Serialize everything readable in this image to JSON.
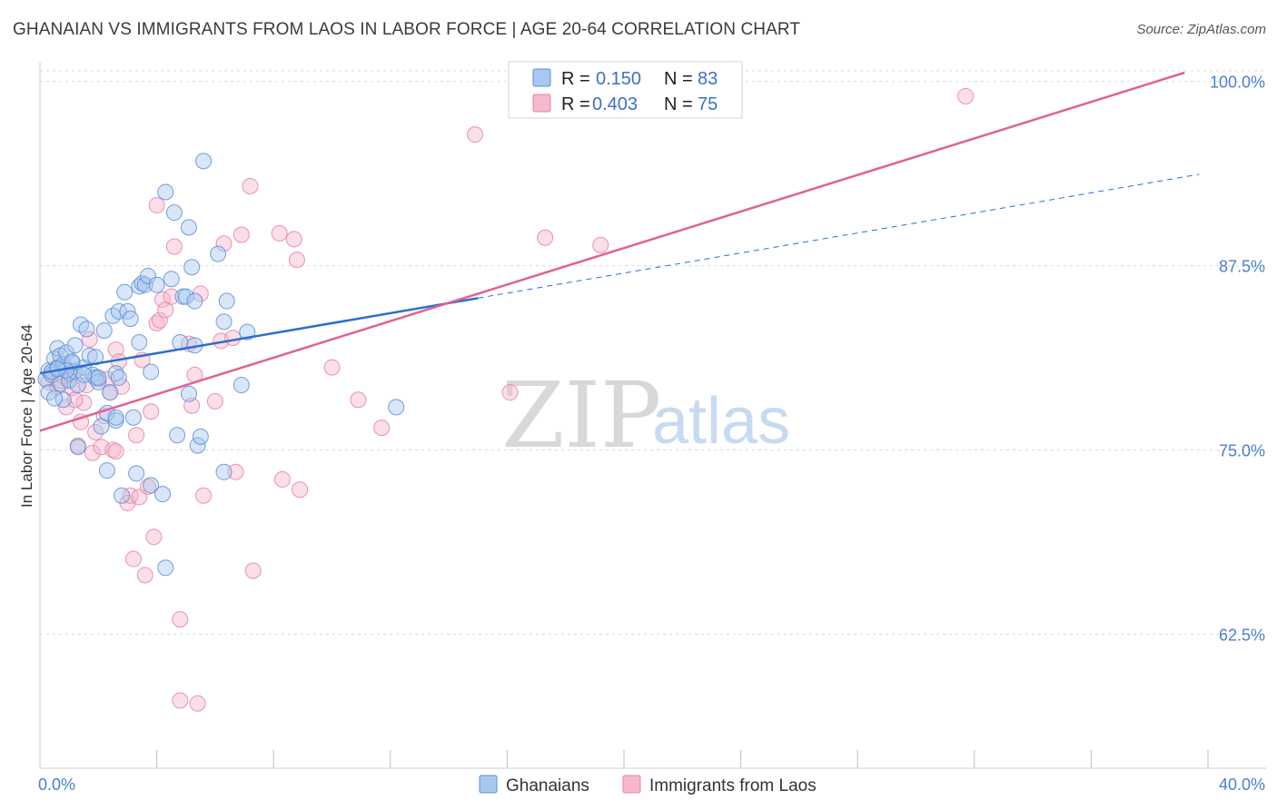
{
  "title": "GHANAIAN VS IMMIGRANTS FROM LAOS IN LABOR FORCE | AGE 20-64 CORRELATION CHART",
  "source": "Source: ZipAtlas.com",
  "watermark": {
    "zip": "ZIP",
    "atlas": "atlas"
  },
  "colors": {
    "blue_fill": "#a9c8f0",
    "blue_stroke": "#5b8fd6",
    "blue_line": "#2a6fd0",
    "pink_fill": "#f5b8cc",
    "pink_stroke": "#e880a6",
    "pink_line": "#e2628f",
    "grid": "#d9d9d9",
    "axis_text": "#4a7fd0"
  },
  "legend": {
    "rows": [
      {
        "r_label": "R =",
        "r_value": "0.150",
        "n_label": "N =",
        "n_value": "83"
      },
      {
        "r_label": "R =",
        "r_value": "0.403",
        "n_label": "N =",
        "n_value": "75"
      }
    ]
  },
  "chart_data": {
    "type": "scatter",
    "title": "GHANAIAN VS IMMIGRANTS FROM LAOS IN LABOR FORCE | AGE 20-64 CORRELATION CHART",
    "xlabel": "",
    "ylabel": "In Labor Force | Age 20-64",
    "xlim": [
      0,
      40
    ],
    "ylim": [
      53.4,
      100.6
    ],
    "y_ticks": [
      62.5,
      75.0,
      87.5,
      100.0
    ],
    "y_tick_labels": [
      "62.5%",
      "75.0%",
      "87.5%",
      "100.0%"
    ],
    "x_tick_labels": [
      "0.0%",
      "40.0%"
    ],
    "x_minor_ticks": [
      0,
      4,
      8,
      12,
      16,
      20,
      24,
      28,
      32,
      36,
      40
    ],
    "series": [
      {
        "name": "Ghanaians",
        "r": 0.15,
        "n": 83,
        "trend": {
          "x0": 0,
          "y0": 80.2,
          "x1": 15,
          "y1": 85.3,
          "dash_x1": 39.7,
          "dash_y1": 93.7
        },
        "points": [
          [
            0.2,
            79.8
          ],
          [
            0.3,
            80.4
          ],
          [
            0.3,
            78.9
          ],
          [
            0.4,
            80.1
          ],
          [
            0.5,
            81.2
          ],
          [
            0.6,
            80.6
          ],
          [
            0.6,
            81.9
          ],
          [
            0.7,
            81.4
          ],
          [
            0.7,
            79.5
          ],
          [
            0.8,
            80.8
          ],
          [
            0.8,
            78.4
          ],
          [
            0.9,
            81.6
          ],
          [
            1.0,
            80.2
          ],
          [
            1.0,
            79.7
          ],
          [
            1.1,
            80.9
          ],
          [
            1.2,
            82.1
          ],
          [
            1.2,
            80.3
          ],
          [
            1.3,
            79.4
          ],
          [
            1.4,
            83.5
          ],
          [
            1.5,
            80.6
          ],
          [
            1.6,
            83.2
          ],
          [
            1.7,
            81.4
          ],
          [
            1.8,
            80.1
          ],
          [
            1.9,
            81.3
          ],
          [
            1.9,
            79.9
          ],
          [
            2.0,
            79.6
          ],
          [
            2.1,
            76.6
          ],
          [
            2.2,
            83.1
          ],
          [
            2.3,
            77.5
          ],
          [
            2.3,
            73.6
          ],
          [
            2.4,
            78.9
          ],
          [
            2.5,
            84.1
          ],
          [
            2.6,
            80.2
          ],
          [
            2.6,
            77.0
          ],
          [
            2.7,
            84.4
          ],
          [
            2.7,
            79.9
          ],
          [
            2.8,
            71.9
          ],
          [
            2.9,
            85.7
          ],
          [
            3.0,
            84.4
          ],
          [
            3.1,
            83.9
          ],
          [
            3.2,
            77.2
          ],
          [
            3.3,
            73.4
          ],
          [
            3.4,
            82.3
          ],
          [
            3.4,
            86.1
          ],
          [
            3.5,
            86.3
          ],
          [
            3.6,
            86.2
          ],
          [
            3.7,
            86.8
          ],
          [
            3.8,
            72.6
          ],
          [
            3.8,
            80.3
          ],
          [
            4.0,
            86.2
          ],
          [
            4.2,
            72.0
          ],
          [
            4.3,
            92.5
          ],
          [
            4.3,
            67.0
          ],
          [
            4.5,
            86.6
          ],
          [
            4.6,
            91.1
          ],
          [
            4.7,
            76.0
          ],
          [
            4.8,
            82.3
          ],
          [
            4.9,
            85.4
          ],
          [
            5.0,
            85.4
          ],
          [
            5.1,
            78.8
          ],
          [
            5.1,
            90.1
          ],
          [
            5.2,
            87.4
          ],
          [
            5.3,
            82.1
          ],
          [
            5.3,
            85.1
          ],
          [
            5.4,
            75.3
          ],
          [
            5.5,
            75.9
          ],
          [
            5.6,
            94.6
          ],
          [
            6.1,
            88.3
          ],
          [
            6.3,
            83.7
          ],
          [
            6.3,
            73.5
          ],
          [
            6.4,
            85.1
          ],
          [
            6.9,
            79.4
          ],
          [
            7.1,
            83.0
          ],
          [
            12.2,
            77.9
          ],
          [
            0.4,
            80.3
          ],
          [
            1.1,
            81.0
          ],
          [
            0.5,
            78.5
          ],
          [
            1.3,
            75.2
          ],
          [
            2.0,
            79.9
          ],
          [
            0.9,
            80.4
          ],
          [
            1.5,
            80.1
          ],
          [
            2.6,
            77.2
          ],
          [
            0.6,
            80.5
          ]
        ]
      },
      {
        "name": "Immigrants from Laos",
        "r": 0.403,
        "n": 75,
        "trend": {
          "x0": 0,
          "y0": 76.3,
          "x1": 39.2,
          "y1": 100.6
        },
        "points": [
          [
            0.3,
            79.6
          ],
          [
            0.4,
            80.3
          ],
          [
            0.5,
            80.1
          ],
          [
            0.6,
            79.3
          ],
          [
            0.7,
            79.7
          ],
          [
            0.8,
            80.6
          ],
          [
            0.9,
            77.9
          ],
          [
            1.0,
            79.8
          ],
          [
            1.1,
            79.2
          ],
          [
            1.2,
            80.4
          ],
          [
            1.3,
            75.3
          ],
          [
            1.4,
            76.9
          ],
          [
            1.5,
            78.2
          ],
          [
            1.6,
            79.4
          ],
          [
            1.7,
            82.5
          ],
          [
            1.8,
            74.8
          ],
          [
            1.9,
            76.2
          ],
          [
            2.0,
            79.8
          ],
          [
            2.1,
            75.2
          ],
          [
            2.2,
            77.3
          ],
          [
            2.3,
            79.8
          ],
          [
            2.4,
            78.9
          ],
          [
            2.5,
            75.0
          ],
          [
            2.6,
            74.9
          ],
          [
            2.6,
            81.8
          ],
          [
            2.7,
            81.0
          ],
          [
            2.8,
            79.3
          ],
          [
            3.0,
            71.4
          ],
          [
            3.1,
            71.9
          ],
          [
            3.2,
            67.6
          ],
          [
            3.3,
            76.0
          ],
          [
            3.4,
            71.8
          ],
          [
            3.5,
            81.1
          ],
          [
            3.6,
            66.5
          ],
          [
            3.7,
            72.5
          ],
          [
            3.8,
            77.6
          ],
          [
            3.9,
            69.1
          ],
          [
            4.0,
            83.6
          ],
          [
            4.0,
            91.6
          ],
          [
            4.1,
            83.8
          ],
          [
            4.2,
            85.2
          ],
          [
            4.3,
            84.5
          ],
          [
            4.5,
            85.4
          ],
          [
            4.6,
            88.8
          ],
          [
            4.8,
            63.5
          ],
          [
            4.8,
            58.0
          ],
          [
            5.1,
            82.2
          ],
          [
            5.2,
            78.0
          ],
          [
            5.3,
            80.1
          ],
          [
            5.4,
            57.8
          ],
          [
            5.5,
            85.6
          ],
          [
            5.6,
            71.9
          ],
          [
            6.0,
            78.3
          ],
          [
            6.2,
            82.4
          ],
          [
            6.3,
            89.0
          ],
          [
            6.6,
            82.6
          ],
          [
            6.7,
            73.5
          ],
          [
            6.9,
            89.6
          ],
          [
            7.2,
            92.9
          ],
          [
            7.3,
            66.8
          ],
          [
            8.3,
            73.0
          ],
          [
            8.2,
            89.7
          ],
          [
            8.7,
            89.3
          ],
          [
            8.8,
            87.9
          ],
          [
            8.9,
            72.3
          ],
          [
            10.0,
            80.6
          ],
          [
            10.9,
            78.4
          ],
          [
            11.7,
            76.5
          ],
          [
            14.9,
            96.4
          ],
          [
            16.1,
            78.9
          ],
          [
            17.3,
            89.4
          ],
          [
            19.2,
            88.9
          ],
          [
            31.7,
            99.0
          ],
          [
            1.2,
            78.4
          ],
          [
            0.8,
            80.0
          ]
        ]
      }
    ],
    "legend_position": "top-center",
    "grid": true
  },
  "bottom_legend": {
    "items": [
      "Ghanaians",
      "Immigrants from Laos"
    ]
  }
}
